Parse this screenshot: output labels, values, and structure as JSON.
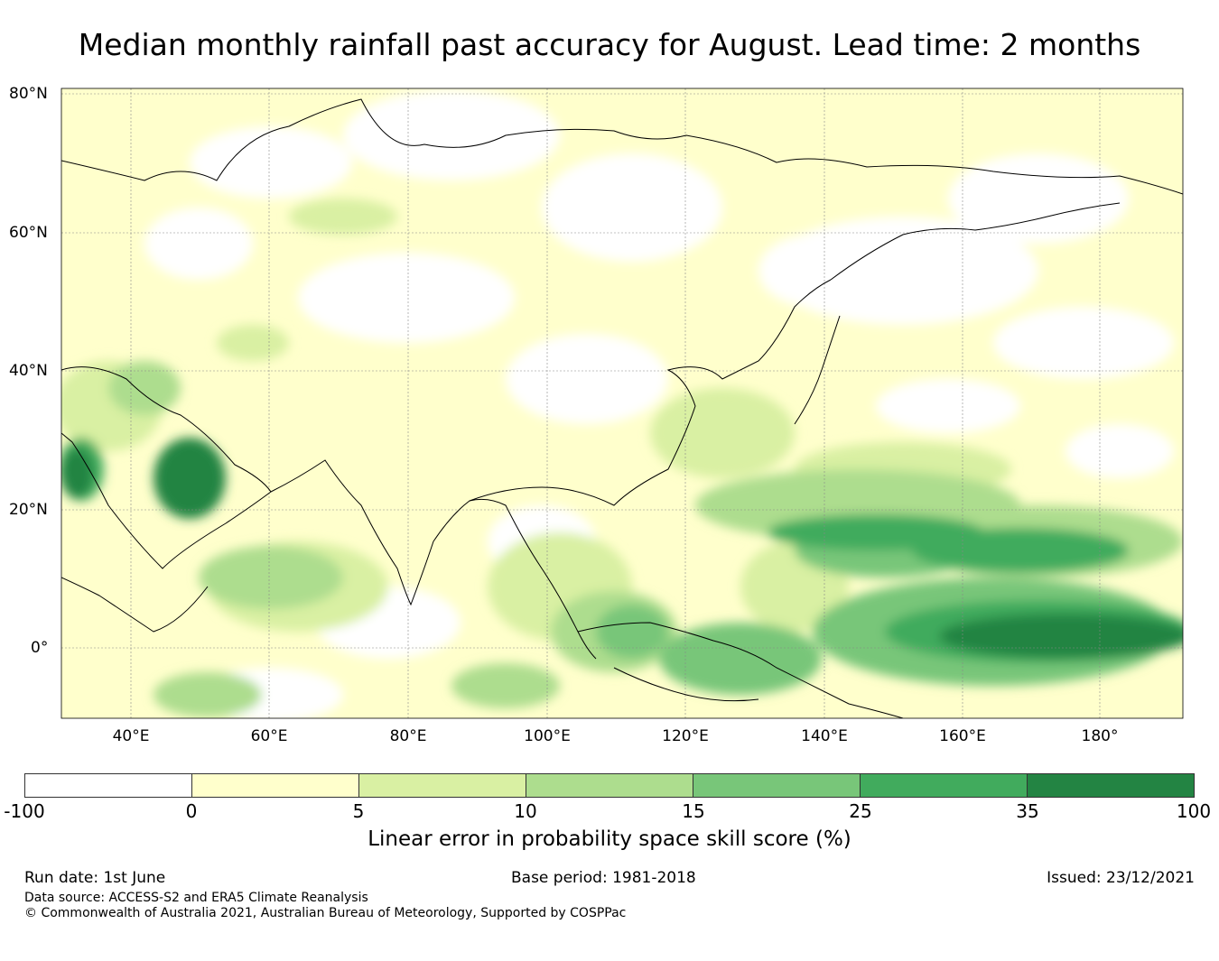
{
  "title": "Median monthly rainfall past accuracy for August. Lead time: 2 months",
  "map": {
    "lat_labels": [
      "80°N",
      "60°N",
      "40°N",
      "20°N",
      "0°"
    ],
    "lon_labels": [
      "40°E",
      "60°E",
      "80°E",
      "100°E",
      "120°E",
      "140°E",
      "160°E",
      "180°"
    ],
    "extent": {
      "lon": [
        30,
        192
      ],
      "lat": [
        -10,
        81
      ]
    }
  },
  "colorbar": {
    "ticks": [
      "-100",
      "0",
      "5",
      "10",
      "15",
      "25",
      "35",
      "100"
    ],
    "colors": [
      "#ffffff",
      "#ffffcc",
      "#d9f0a3",
      "#addd8e",
      "#78c679",
      "#41ab5d",
      "#238443"
    ],
    "label": "Linear error in probability space skill score (%)"
  },
  "footer": {
    "run_date": "Run date: 1st June",
    "base_period": "Base period: 1981-2018",
    "issued": "Issued: 23/12/2021",
    "data_source": "Data source: ACCESS-S2 and ERA5 Climate Reanalysis",
    "copyright": "© Commonwealth of Australia 2021, Australian Bureau of Meteorology, Supported by COSPPac"
  }
}
